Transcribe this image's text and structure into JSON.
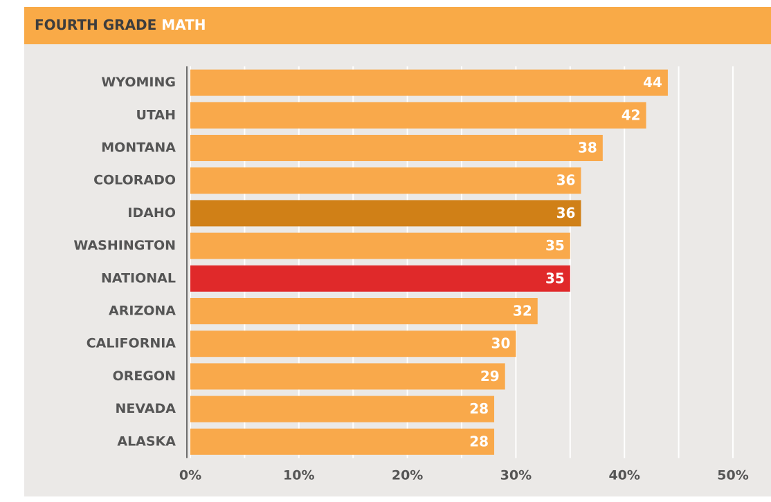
{
  "chart_data": {
    "type": "barh",
    "title": "FOURTH GRADE",
    "subject": "MATH",
    "categories": [
      "WYOMING",
      "UTAH",
      "MONTANA",
      "COLORADO",
      "IDAHO",
      "WASHINGTON",
      "NATIONAL",
      "ARIZONA",
      "CALIFORNIA",
      "OREGON",
      "NEVADA",
      "ALASKA"
    ],
    "values": [
      44,
      42,
      38,
      36,
      36,
      35,
      35,
      32,
      30,
      29,
      28,
      28
    ],
    "colors": [
      "#f9a94b",
      "#f9a94b",
      "#f9a94b",
      "#f9a94b",
      "#d08017",
      "#f9a94b",
      "#e0292a",
      "#f9a94b",
      "#f9a94b",
      "#f9a94b",
      "#f9a94b",
      "#f9a94b"
    ],
    "xlim": [
      0,
      50
    ],
    "xticks": [
      {
        "value": 0,
        "label": "0%"
      },
      {
        "value": 10,
        "label": "10%"
      },
      {
        "value": 20,
        "label": "20%"
      },
      {
        "value": 30,
        "label": "30%"
      },
      {
        "value": 40,
        "label": "40%"
      },
      {
        "value": 50,
        "label": "50%"
      }
    ],
    "xgridticks": [
      0,
      5,
      10,
      15,
      20,
      25,
      30,
      35,
      40,
      45,
      50
    ],
    "grid": true
  }
}
